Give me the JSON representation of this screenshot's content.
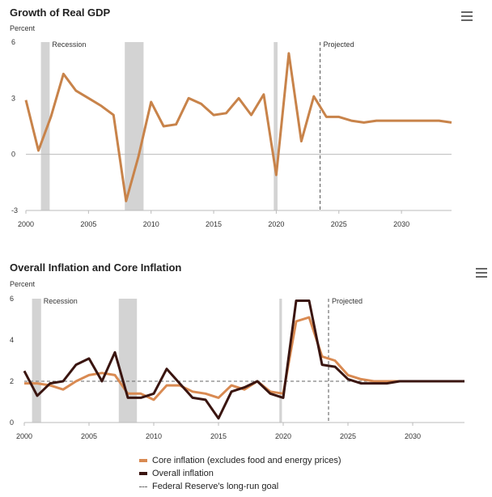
{
  "chart_data": [
    {
      "type": "line",
      "title": "Growth of Real GDP",
      "ylabel": "Percent",
      "xlabel": "",
      "xlim": [
        2000,
        2034
      ],
      "ylim": [
        -3,
        6
      ],
      "yticks": [
        -3,
        0,
        3,
        6
      ],
      "xticks": [
        2000,
        2005,
        2010,
        2015,
        2020,
        2025,
        2030
      ],
      "grid": false,
      "recession_label": "Recession",
      "projected_label": "Projected",
      "projected_start": 2023.5,
      "recessions": [
        [
          2001.2,
          2001.9
        ],
        [
          2007.9,
          2009.4
        ],
        [
          2019.8,
          2020.1
        ]
      ],
      "series": [
        {
          "color": "#c8834a",
          "x": [
            2000,
            2001,
            2002,
            2003,
            2004,
            2005,
            2006,
            2007,
            2008,
            2009,
            2010,
            2011,
            2012,
            2013,
            2014,
            2015,
            2016,
            2017,
            2018,
            2019,
            2020,
            2021,
            2022,
            2023,
            2024,
            2025,
            2026,
            2027,
            2028,
            2029,
            2030,
            2031,
            2032,
            2033,
            2034
          ],
          "values": [
            2.9,
            0.2,
            2.0,
            4.3,
            3.4,
            3.0,
            2.6,
            2.1,
            -2.5,
            -0.1,
            2.8,
            1.5,
            1.6,
            3.0,
            2.7,
            2.1,
            2.2,
            3.0,
            2.1,
            3.2,
            -1.1,
            5.4,
            0.7,
            3.1,
            2.0,
            2.0,
            1.8,
            1.7,
            1.8,
            1.8,
            1.8,
            1.8,
            1.8,
            1.8,
            1.7
          ]
        }
      ]
    },
    {
      "type": "line",
      "title": "Overall Inflation and Core Inflation",
      "ylabel": "Percent",
      "xlabel": "",
      "xlim": [
        2000,
        2034
      ],
      "ylim": [
        0,
        6
      ],
      "yticks": [
        0,
        2,
        4,
        6
      ],
      "xticks": [
        2000,
        2005,
        2010,
        2015,
        2020,
        2025,
        2030
      ],
      "grid": false,
      "recession_label": "Recession",
      "projected_label": "Projected",
      "projected_start": 2023.5,
      "goal_value": 2,
      "recessions": [
        [
          2000.6,
          2001.3
        ],
        [
          2007.3,
          2008.7
        ],
        [
          2019.7,
          2019.9
        ]
      ],
      "series": [
        {
          "name": "Core inflation (excludes food and energy prices)",
          "color": "#d98a52",
          "x": [
            2000,
            2001,
            2002,
            2003,
            2004,
            2005,
            2006,
            2007,
            2008,
            2009,
            2010,
            2011,
            2012,
            2013,
            2014,
            2015,
            2016,
            2017,
            2018,
            2019,
            2020,
            2021,
            2022,
            2023,
            2024,
            2025,
            2026,
            2027,
            2028,
            2029,
            2030,
            2031,
            2032,
            2033,
            2034
          ],
          "values": [
            1.9,
            1.9,
            1.8,
            1.6,
            2.0,
            2.3,
            2.4,
            2.3,
            1.4,
            1.4,
            1.1,
            1.8,
            1.8,
            1.5,
            1.4,
            1.2,
            1.8,
            1.6,
            2.0,
            1.5,
            1.4,
            4.9,
            5.1,
            3.2,
            3.0,
            2.3,
            2.1,
            2.0,
            2.0,
            2.0,
            2.0,
            2.0,
            2.0,
            2.0,
            2.0
          ]
        },
        {
          "name": "Overall inflation",
          "color": "#3a1510",
          "x": [
            2000,
            2001,
            2002,
            2003,
            2004,
            2005,
            2006,
            2007,
            2008,
            2009,
            2010,
            2011,
            2012,
            2013,
            2014,
            2015,
            2016,
            2017,
            2018,
            2019,
            2020,
            2021,
            2022,
            2023,
            2024,
            2025,
            2026,
            2027,
            2028,
            2029,
            2030,
            2031,
            2032,
            2033,
            2034
          ],
          "values": [
            2.5,
            1.3,
            1.9,
            2.0,
            2.8,
            3.1,
            2.0,
            3.4,
            1.2,
            1.2,
            1.4,
            2.6,
            1.9,
            1.2,
            1.1,
            0.2,
            1.5,
            1.7,
            2.0,
            1.4,
            1.2,
            5.9,
            5.9,
            2.8,
            2.7,
            2.1,
            1.9,
            1.9,
            1.9,
            2.0,
            2.0,
            2.0,
            2.0,
            2.0,
            2.0
          ]
        }
      ]
    }
  ],
  "legend": {
    "core": "Core inflation (excludes food and energy prices)",
    "overall": "Overall inflation",
    "goal": "Federal Reserve's long-run goal"
  },
  "colors": {
    "core": "#d98a52",
    "overall": "#3a1510",
    "goal": "#666666",
    "recession": "#d3d3d3"
  },
  "icons": {
    "menu": "hamburger-menu-icon"
  }
}
